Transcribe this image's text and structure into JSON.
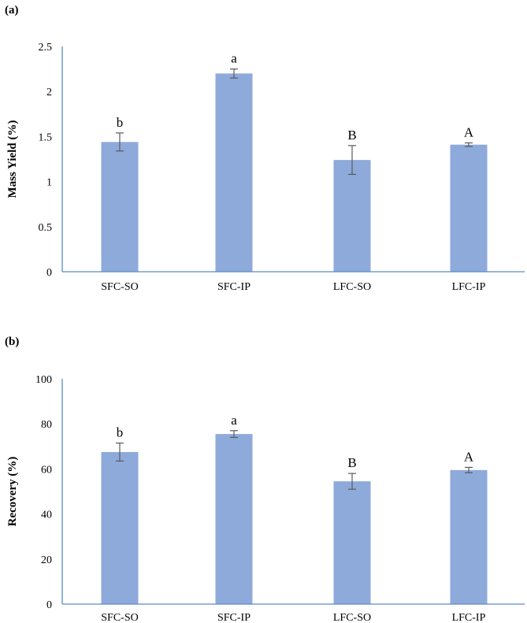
{
  "chart_data": [
    {
      "type": "bar",
      "panel_label": "(a)",
      "ylabel": "Mass Yield (%)",
      "xlabel": "",
      "categories": [
        "SFC-SO",
        "SFC-IP",
        "LFC-SO",
        "LFC-IP"
      ],
      "values": [
        1.44,
        2.2,
        1.24,
        1.41
      ],
      "errors": [
        0.1,
        0.05,
        0.16,
        0.02
      ],
      "annotations": [
        "b",
        "a",
        "B",
        "A"
      ],
      "ylim": [
        0,
        2.5
      ],
      "yticks": [
        0,
        0.5,
        1,
        1.5,
        2,
        2.5
      ],
      "ytick_labels": [
        "0",
        "0.5",
        "1",
        "1.5",
        "2",
        "2.5"
      ],
      "bar_color": "#8eaadb",
      "axis_color": "#5b8cc6",
      "grid": false,
      "legend": "none"
    },
    {
      "type": "bar",
      "panel_label": "(b)",
      "ylabel": "Recovery (%)",
      "xlabel": "",
      "categories": [
        "SFC-SO",
        "SFC-IP",
        "LFC-SO",
        "LFC-IP"
      ],
      "values": [
        67.5,
        75.5,
        54.5,
        59.5
      ],
      "errors": [
        4,
        1.5,
        3.5,
        1.2
      ],
      "annotations": [
        "b",
        "a",
        "B",
        "A"
      ],
      "ylim": [
        0,
        100
      ],
      "yticks": [
        0,
        20,
        40,
        60,
        80,
        100
      ],
      "ytick_labels": [
        "0",
        "20",
        "40",
        "60",
        "80",
        "100"
      ],
      "bar_color": "#8eaadb",
      "axis_color": "#5b8cc6",
      "grid": false,
      "legend": "none"
    }
  ]
}
